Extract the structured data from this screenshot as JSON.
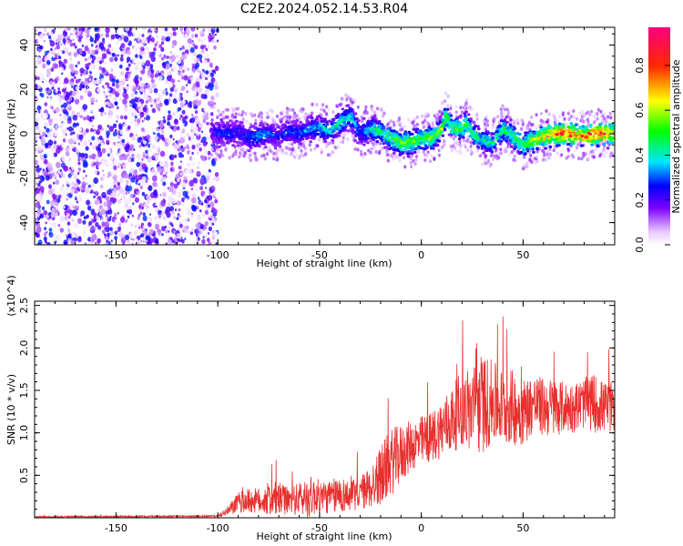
{
  "title": "C2E2.2024.052.14.53.R04",
  "chart_data": [
    {
      "type": "heatmap",
      "xlabel": "Height of straight line (km)",
      "ylabel": "Frequency (Hz)",
      "xlim": [
        -190,
        95
      ],
      "ylim": [
        -50,
        48
      ],
      "xticks": [
        -150,
        -100,
        -50,
        0,
        50
      ],
      "yticks": [
        -40,
        -20,
        0,
        20,
        40
      ],
      "colorbar": {
        "label": "Normalized spectral amplitude",
        "range": [
          0,
          0.97
        ],
        "ticks": [
          0.0,
          0.2,
          0.4,
          0.6,
          0.8
        ],
        "colormap": "rainbow (purple-blue-cyan-green-yellow-red-magenta)"
      },
      "ridge": {
        "x": [
          -103,
          -95,
          -90,
          -85,
          -80,
          -75,
          -70,
          -65,
          -60,
          -55,
          -50,
          -45,
          -40,
          -35,
          -30,
          -25,
          -20,
          -15,
          -10,
          -5,
          0,
          5,
          10,
          12,
          15,
          20,
          22,
          25,
          30,
          35,
          40,
          45,
          50,
          55,
          60,
          65,
          70,
          75,
          80,
          85,
          90,
          95
        ],
        "freq": [
          1,
          0,
          1,
          -2,
          -1,
          0,
          -1,
          1,
          0,
          2,
          3,
          1,
          5,
          8,
          0,
          2,
          1,
          -2,
          -4,
          -4,
          -2,
          -2,
          2,
          8,
          3,
          2,
          5,
          0,
          -3,
          -4,
          2,
          -1,
          -5,
          -3,
          -1,
          0,
          0,
          0,
          -1,
          0,
          0,
          0
        ],
        "amplitude": [
          0.3,
          0.35,
          0.3,
          0.35,
          0.4,
          0.35,
          0.3,
          0.35,
          0.35,
          0.4,
          0.45,
          0.45,
          0.5,
          0.5,
          0.35,
          0.5,
          0.55,
          0.6,
          0.65,
          0.65,
          0.6,
          0.65,
          0.65,
          0.6,
          0.6,
          0.6,
          0.6,
          0.55,
          0.5,
          0.5,
          0.55,
          0.6,
          0.6,
          0.7,
          0.8,
          0.9,
          0.95,
          0.9,
          0.85,
          0.95,
          0.95,
          0.8
        ]
      },
      "noise_region": {
        "x_range": [
          -190,
          -103
        ],
        "freq_range": [
          -50,
          48
        ],
        "amplitude_range": [
          0.0,
          0.3
        ]
      }
    },
    {
      "type": "line",
      "xlabel": "Height of straight line (km)",
      "ylabel": "SNR (10 * v/v)",
      "scale_label": "(x10^4)",
      "xlim": [
        -190,
        95
      ],
      "ylim": [
        0,
        2.55
      ],
      "xticks": [
        -150,
        -100,
        -50,
        0,
        50
      ],
      "yticks": [
        0.5,
        1.0,
        1.5,
        2.0,
        2.5
      ],
      "color": "#e8302e",
      "envelope": {
        "x": [
          -190,
          -100,
          -95,
          -90,
          -85,
          -80,
          -75,
          -70,
          -65,
          -60,
          -55,
          -50,
          -45,
          -40,
          -35,
          -30,
          -25,
          -20,
          -15,
          -10,
          -5,
          0,
          5,
          10,
          15,
          20,
          25,
          30,
          35,
          40,
          45,
          50,
          55,
          60,
          65,
          70,
          75,
          80,
          85,
          90,
          95
        ],
        "y_mid": [
          0.01,
          0.02,
          0.08,
          0.18,
          0.2,
          0.2,
          0.22,
          0.22,
          0.2,
          0.22,
          0.25,
          0.25,
          0.24,
          0.28,
          0.25,
          0.3,
          0.35,
          0.5,
          0.65,
          0.75,
          0.85,
          0.9,
          0.95,
          1.05,
          1.15,
          1.3,
          1.25,
          1.35,
          1.35,
          1.3,
          1.3,
          1.25,
          1.35,
          1.3,
          1.3,
          1.3,
          1.3,
          1.35,
          1.35,
          1.3,
          1.3
        ],
        "y_spread": [
          0.01,
          0.01,
          0.06,
          0.12,
          0.15,
          0.15,
          0.2,
          0.2,
          0.15,
          0.2,
          0.25,
          0.2,
          0.2,
          0.22,
          0.18,
          0.2,
          0.25,
          0.35,
          0.4,
          0.35,
          0.3,
          0.3,
          0.3,
          0.35,
          0.4,
          0.45,
          0.55,
          0.6,
          0.5,
          0.45,
          0.45,
          0.4,
          0.35,
          0.35,
          0.35,
          0.3,
          0.3,
          0.3,
          0.35,
          0.3,
          0.3
        ]
      }
    }
  ]
}
